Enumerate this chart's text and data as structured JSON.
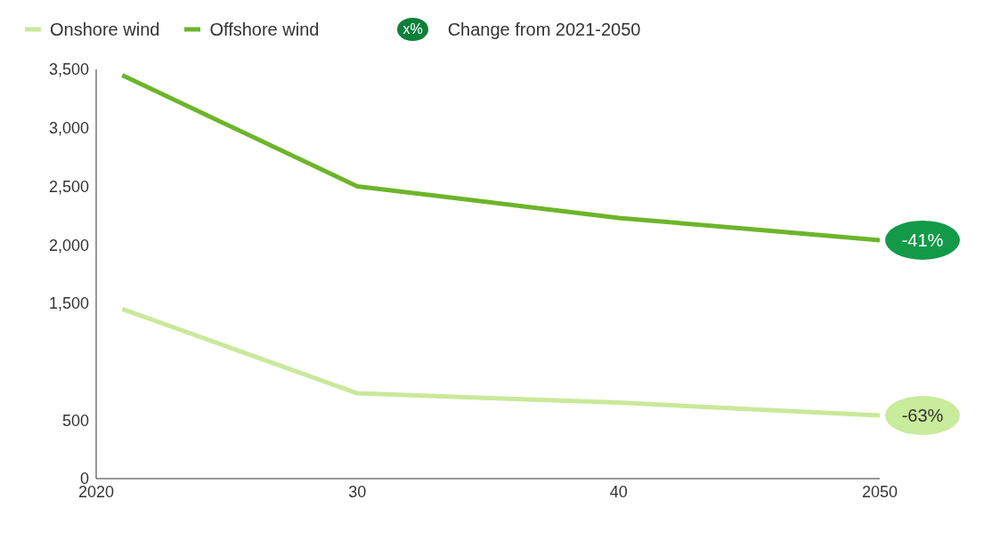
{
  "chart_data": {
    "type": "line",
    "x": [
      2021,
      2030,
      2040,
      2050
    ],
    "series": [
      {
        "name": "Onshore wind",
        "color": "#c9e99a",
        "values": [
          1450,
          730,
          650,
          540
        ]
      },
      {
        "name": "Offshore wind",
        "color": "#6cb52a",
        "values": [
          3450,
          2500,
          2230,
          2040
        ]
      }
    ],
    "xlim": [
      2020,
      2050
    ],
    "xticks": [
      2020,
      {
        "value": 2030,
        "label": "30"
      },
      {
        "value": 2040,
        "label": "40"
      },
      2050
    ],
    "ylim": [
      0,
      3500
    ],
    "yticks": [
      0,
      500,
      {
        "value": 1500,
        "label": "1,500"
      },
      {
        "value": 2000,
        "label": "2,000"
      },
      {
        "value": 2500,
        "label": "2,500"
      },
      {
        "value": 3000,
        "label": "3,000"
      },
      {
        "value": 3500,
        "label": "3,500"
      }
    ],
    "annotations": [
      "x%",
      "Change from 2021-2050",
      {
        "text": "-41%",
        "x": 2050,
        "y": 2040
      },
      {
        "text": "-63%",
        "x": 2050,
        "y": 540
      }
    ],
    "grid": false,
    "legend": "top left",
    "marker": "none",
    "line_style": "solid"
  }
}
